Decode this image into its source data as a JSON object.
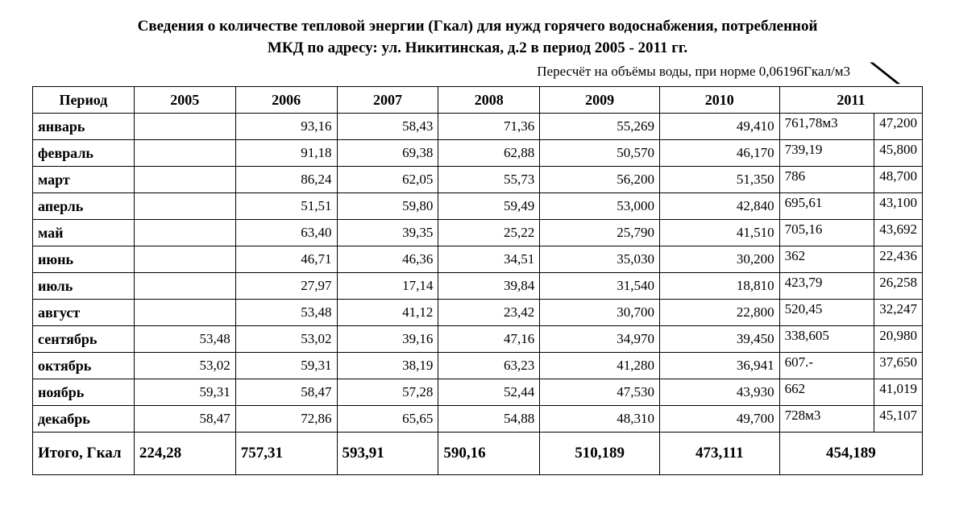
{
  "title_line1": "Сведения о количестве тепловой энергии (Гкал) для нужд горячего водоснабжения, потребленной",
  "title_line2": "МКД по адресу: ул. Никитинская, д.2 в период 2005 - 2011 гг.",
  "note": "Пересчёт на объёмы воды, при норме 0,06196Гкал/м3",
  "columns": [
    "Период",
    "2005",
    "2006",
    "2007",
    "2008",
    "2009",
    "2010",
    "2011"
  ],
  "rows": [
    {
      "p": "январь",
      "y05": "",
      "y06": "93,16",
      "y07": "58,43",
      "y08": "71,36",
      "y09": "55,269",
      "y10": "49,410",
      "y11l": "761,78м3",
      "y11r": "47,200"
    },
    {
      "p": "февраль",
      "y05": "",
      "y06": "91,18",
      "y07": "69,38",
      "y08": "62,88",
      "y09": "50,570",
      "y10": "46,170",
      "y11l": "739,19",
      "y11r": "45,800"
    },
    {
      "p": "март",
      "y05": "",
      "y06": "86,24",
      "y07": "62,05",
      "y08": "55,73",
      "y09": "56,200",
      "y10": "51,350",
      "y11l": "786",
      "y11r": "48,700"
    },
    {
      "p": "аперль",
      "y05": "",
      "y06": "51,51",
      "y07": "59,80",
      "y08": "59,49",
      "y09": "53,000",
      "y10": "42,840",
      "y11l": "695,61",
      "y11r": "43,100"
    },
    {
      "p": "май",
      "y05": "",
      "y06": "63,40",
      "y07": "39,35",
      "y08": "25,22",
      "y09": "25,790",
      "y10": "41,510",
      "y11l": "705,16",
      "y11r": "43,692"
    },
    {
      "p": "июнь",
      "y05": "",
      "y06": "46,71",
      "y07": "46,36",
      "y08": "34,51",
      "y09": "35,030",
      "y10": "30,200",
      "y11l": "362",
      "y11r": "22,436"
    },
    {
      "p": "июль",
      "y05": "",
      "y06": "27,97",
      "y07": "17,14",
      "y08": "39,84",
      "y09": "31,540",
      "y10": "18,810",
      "y11l": "423,79",
      "y11r": "26,258"
    },
    {
      "p": "август",
      "y05": "",
      "y06": "53,48",
      "y07": "41,12",
      "y08": "23,42",
      "y09": "30,700",
      "y10": "22,800",
      "y11l": "520,45",
      "y11r": "32,247"
    },
    {
      "p": "сентябрь",
      "y05": "53,48",
      "y06": "53,02",
      "y07": "39,16",
      "y08": "47,16",
      "y09": "34,970",
      "y10": "39,450",
      "y11l": "338,605",
      "y11r": "20,980"
    },
    {
      "p": "октябрь",
      "y05": "53,02",
      "y06": "59,31",
      "y07": "38,19",
      "y08": "63,23",
      "y09": "41,280",
      "y10": "36,941",
      "y11l": "607.-",
      "y11r": "37,650"
    },
    {
      "p": "ноябрь",
      "y05": "59,31",
      "y06": "58,47",
      "y07": "57,28",
      "y08": "52,44",
      "y09": "47,530",
      "y10": "43,930",
      "y11l": "662",
      "y11r": "41,019"
    },
    {
      "p": "декабрь",
      "y05": "58,47",
      "y06": "72,86",
      "y07": "65,65",
      "y08": "54,88",
      "y09": "48,310",
      "y10": "49,700",
      "y11l": "728м3",
      "y11r": "45,107"
    }
  ],
  "total": {
    "label": "Итого, Гкал",
    "y05": "224,28",
    "y06": "757,31",
    "y07": "593,91",
    "y08": "590,16",
    "y09": "510,189",
    "y10": "473,111",
    "y11": "454,189"
  }
}
